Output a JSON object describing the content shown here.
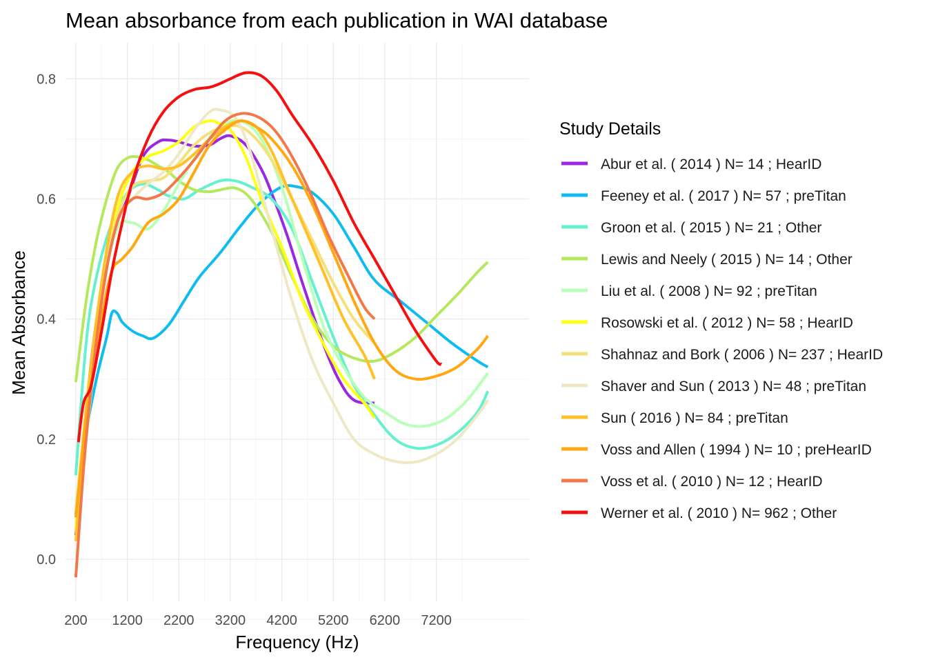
{
  "chart_data": {
    "type": "line",
    "title": "Mean absorbance from each publication in WAI database",
    "xlabel": "Frequency (Hz)",
    "ylabel": "Mean Absorbance",
    "xlim": [
      0,
      9000
    ],
    "ylim": [
      -0.07,
      0.86
    ],
    "xticks": [
      200,
      1200,
      2200,
      3200,
      4200,
      5200,
      6200,
      7200
    ],
    "yticks": [
      0.0,
      0.2,
      0.4,
      0.6,
      0.8
    ],
    "xtick_labels": [
      "200",
      "1200",
      "2200",
      "3200",
      "4200",
      "5200",
      "6200",
      "7200"
    ],
    "ytick_labels": [
      "0.0",
      "0.2",
      "0.4",
      "0.6",
      "0.8"
    ],
    "grid": true,
    "legend_title": "Study Details",
    "legend_position": "right",
    "series": [
      {
        "name": "Abur et al. ( 2014 ) N= 14 ; HearID",
        "color": "#9b27e0",
        "x": [
          200,
          300,
          500,
          800,
          1000,
          1200,
          1500,
          1800,
          2000,
          2200,
          2500,
          2800,
          3000,
          3200,
          3500,
          3800,
          4000,
          4300,
          4600,
          5000,
          5300,
          5600,
          6000
        ],
        "y": [
          0.04,
          0.12,
          0.33,
          0.5,
          0.56,
          0.6,
          0.67,
          0.695,
          0.698,
          0.695,
          0.688,
          0.69,
          0.7,
          0.705,
          0.69,
          0.65,
          0.61,
          0.54,
          0.46,
          0.36,
          0.3,
          0.265,
          0.26
        ]
      },
      {
        "name": "Feeney et al. ( 2017 ) N= 57 ; preTitan",
        "color": "#0fbcf0",
        "x": [
          200,
          400,
          600,
          800,
          900,
          1000,
          1100,
          1300,
          1500,
          1700,
          2000,
          2300,
          2600,
          3000,
          3400,
          3800,
          4200,
          4500,
          4800,
          5200,
          5600,
          6000,
          6500,
          7000,
          7500,
          8000,
          8200
        ],
        "y": [
          0.075,
          0.21,
          0.3,
          0.37,
          0.41,
          0.41,
          0.395,
          0.38,
          0.372,
          0.368,
          0.39,
          0.43,
          0.47,
          0.51,
          0.555,
          0.595,
          0.62,
          0.62,
          0.61,
          0.575,
          0.52,
          0.465,
          0.43,
          0.395,
          0.36,
          0.33,
          0.32
        ]
      },
      {
        "name": "Groon et al. ( 2015 ) N= 21 ; Other",
        "color": "#66f0d0",
        "x": [
          200,
          400,
          600,
          900,
          1200,
          1500,
          1800,
          2000,
          2300,
          2600,
          3000,
          3300,
          3600,
          4000,
          4400,
          4800,
          5200,
          5600,
          6000,
          6400,
          6800,
          7200,
          7600,
          8000,
          8200
        ],
        "y": [
          0.14,
          0.36,
          0.47,
          0.56,
          0.61,
          0.625,
          0.615,
          0.605,
          0.6,
          0.615,
          0.63,
          0.63,
          0.62,
          0.6,
          0.55,
          0.46,
          0.37,
          0.29,
          0.24,
          0.2,
          0.185,
          0.19,
          0.21,
          0.245,
          0.28
        ]
      },
      {
        "name": "Lewis and Neely ( 2015 ) N= 14 ; Other",
        "color": "#b5e85c",
        "x": [
          200,
          400,
          600,
          800,
          1000,
          1200,
          1400,
          1600,
          1800,
          2000,
          2200,
          2500,
          2800,
          3000,
          3300,
          3600,
          4000,
          4400,
          4800,
          5200,
          5600,
          6000,
          6400,
          6800,
          7200,
          7600,
          8000,
          8200
        ],
        "y": [
          0.295,
          0.43,
          0.53,
          0.6,
          0.65,
          0.668,
          0.67,
          0.665,
          0.655,
          0.645,
          0.63,
          0.615,
          0.612,
          0.615,
          0.618,
          0.6,
          0.545,
          0.47,
          0.4,
          0.355,
          0.335,
          0.33,
          0.345,
          0.37,
          0.405,
          0.44,
          0.478,
          0.495
        ]
      },
      {
        "name": "Liu et al. ( 2008 ) N= 92 ; preTitan",
        "color": "#b8ffb8",
        "x": [
          200,
          400,
          700,
          1000,
          1300,
          1600,
          1900,
          2200,
          2600,
          3000,
          3400,
          3800,
          4200,
          4600,
          5000,
          5400,
          5800,
          6200,
          6600,
          7000,
          7400,
          7800,
          8200
        ],
        "y": [
          0.06,
          0.2,
          0.43,
          0.55,
          0.56,
          0.55,
          0.58,
          0.625,
          0.68,
          0.72,
          0.73,
          0.7,
          0.62,
          0.5,
          0.39,
          0.32,
          0.27,
          0.245,
          0.225,
          0.222,
          0.235,
          0.265,
          0.31
        ]
      },
      {
        "name": "Rosowski et al. ( 2012 ) N= 58 ; HearID",
        "color": "#ffff14",
        "x": [
          200,
          400,
          700,
          1000,
          1300,
          1600,
          1900,
          2200,
          2500,
          2800,
          3000,
          3200,
          3500,
          3800,
          4200,
          4600,
          5000,
          5400,
          5800,
          6000
        ],
        "y": [
          0.05,
          0.22,
          0.44,
          0.58,
          0.645,
          0.67,
          0.68,
          0.695,
          0.72,
          0.73,
          0.725,
          0.715,
          0.67,
          0.6,
          0.52,
          0.43,
          0.36,
          0.3,
          0.26,
          0.235
        ]
      },
      {
        "name": "Shahnaz and Bork ( 2006 ) N= 237 ; HearID",
        "color": "#f5e07a",
        "x": [
          200,
          400,
          700,
          1000,
          1300,
          1600,
          1900,
          2200,
          2500,
          2800,
          3100,
          3400,
          3700,
          4000,
          4400,
          4800,
          5200,
          5600,
          6000
        ],
        "y": [
          0.08,
          0.25,
          0.45,
          0.57,
          0.62,
          0.63,
          0.635,
          0.66,
          0.69,
          0.71,
          0.72,
          0.72,
          0.7,
          0.665,
          0.6,
          0.53,
          0.46,
          0.4,
          0.36
        ]
      },
      {
        "name": "Shaver and Sun ( 2013 ) N= 48 ; preTitan",
        "color": "#eee8c4",
        "x": [
          200,
          400,
          700,
          1000,
          1300,
          1600,
          1900,
          2200,
          2500,
          2800,
          3000,
          3300,
          3600,
          4000,
          4400,
          4800,
          5200,
          5600,
          6000,
          6400,
          6800,
          7200,
          7600,
          8000,
          8200
        ],
        "y": [
          0.03,
          0.22,
          0.44,
          0.56,
          0.6,
          0.625,
          0.645,
          0.675,
          0.715,
          0.745,
          0.748,
          0.735,
          0.675,
          0.55,
          0.43,
          0.33,
          0.26,
          0.2,
          0.175,
          0.163,
          0.162,
          0.175,
          0.2,
          0.24,
          0.265
        ]
      },
      {
        "name": "Sun ( 2016 ) N= 84 ; preTitan",
        "color": "#ffc02a",
        "x": [
          200,
          400,
          700,
          1000,
          1300,
          1600,
          1900,
          2200,
          2500,
          2800,
          3100,
          3400,
          3700,
          4000,
          4300,
          4600,
          5000,
          5400,
          5800,
          6000
        ],
        "y": [
          0.03,
          0.25,
          0.46,
          0.6,
          0.645,
          0.655,
          0.65,
          0.655,
          0.675,
          0.7,
          0.72,
          0.73,
          0.72,
          0.68,
          0.62,
          0.56,
          0.48,
          0.4,
          0.34,
          0.3
        ]
      },
      {
        "name": "Voss and Allen ( 1994 ) N= 10 ; preHearID",
        "color": "#ffa812",
        "x": [
          200,
          400,
          700,
          900,
          1100,
          1300,
          1600,
          1900,
          2200,
          2500,
          2800,
          3100,
          3400,
          3700,
          4000,
          4400,
          4800,
          5200,
          5600,
          6000,
          6400,
          6800,
          7200,
          7600,
          8000,
          8200
        ],
        "y": [
          0.07,
          0.23,
          0.4,
          0.48,
          0.5,
          0.52,
          0.56,
          0.575,
          0.6,
          0.645,
          0.69,
          0.715,
          0.73,
          0.72,
          0.7,
          0.655,
          0.59,
          0.51,
          0.43,
          0.36,
          0.315,
          0.3,
          0.305,
          0.32,
          0.35,
          0.372
        ]
      },
      {
        "name": "Voss et al. ( 2010 ) N= 12 ; HearID",
        "color": "#f2784a",
        "x": [
          200,
          400,
          700,
          1000,
          1300,
          1600,
          1900,
          2200,
          2500,
          2800,
          3100,
          3400,
          3700,
          4000,
          4300,
          4700,
          5100,
          5500,
          5800,
          6000
        ],
        "y": [
          -0.03,
          0.2,
          0.43,
          0.56,
          0.6,
          0.6,
          0.61,
          0.635,
          0.665,
          0.7,
          0.73,
          0.742,
          0.738,
          0.72,
          0.685,
          0.62,
          0.54,
          0.47,
          0.42,
          0.4
        ]
      },
      {
        "name": "Werner et al. ( 2010 ) N= 962 ; Other",
        "color": "#f51010",
        "x": [
          250,
          350,
          500,
          700,
          900,
          1100,
          1300,
          1600,
          1900,
          2200,
          2500,
          2800,
          3000,
          3200,
          3500,
          3800,
          4100,
          4400,
          4800,
          5200,
          5600,
          6000,
          6400,
          6800,
          7200,
          7300
        ],
        "y": [
          0.195,
          0.26,
          0.29,
          0.38,
          0.48,
          0.56,
          0.63,
          0.7,
          0.745,
          0.77,
          0.782,
          0.786,
          0.792,
          0.8,
          0.81,
          0.805,
          0.78,
          0.74,
          0.69,
          0.63,
          0.56,
          0.5,
          0.44,
          0.38,
          0.33,
          0.325
        ]
      }
    ]
  }
}
